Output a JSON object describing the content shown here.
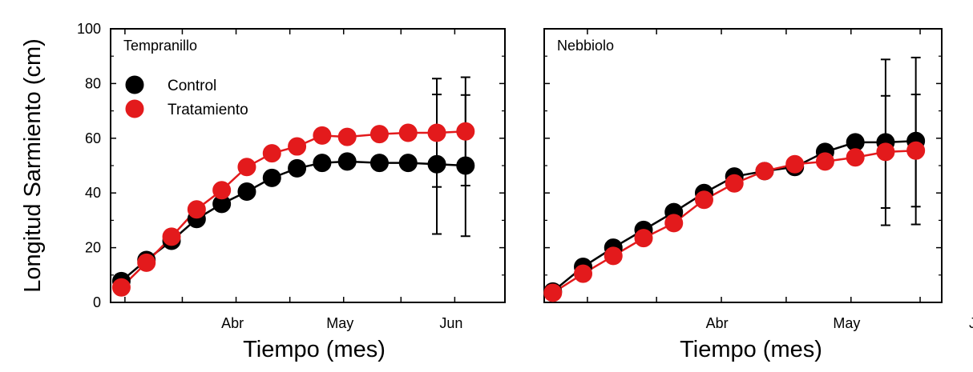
{
  "colors": {
    "control": "#000000",
    "tratamiento": "#e31a1c"
  },
  "ylabel": "Longitud Sarmiento (cm)",
  "legend": {
    "control_label": "Control",
    "tratamiento_label": "Tratamiento"
  },
  "chart_data": [
    {
      "type": "line",
      "title": "Tempranillo",
      "xlabel": "Tiempo (mes)",
      "ylabel": "Longitud Sarmiento (cm)",
      "ylim": [
        0,
        100
      ],
      "yticks": [
        0,
        20,
        40,
        60,
        80,
        100
      ],
      "xlim": [
        "2024-03-12",
        "2024-06-30"
      ],
      "xtick_labels": [
        {
          "label": "Abr",
          "date": "2024-04-01"
        },
        {
          "label": "May",
          "date": "2024-05-01"
        },
        {
          "label": "Jun",
          "date": "2024-06-01"
        }
      ],
      "x": [
        "2024-03-15",
        "2024-03-22",
        "2024-03-29",
        "2024-04-05",
        "2024-04-12",
        "2024-04-19",
        "2024-04-26",
        "2024-05-03",
        "2024-05-10",
        "2024-05-17",
        "2024-05-26",
        "2024-06-03",
        "2024-06-11",
        "2024-06-19"
      ],
      "series": [
        {
          "name": "Control",
          "color": "#000000",
          "values": [
            7.8,
            15.5,
            22.5,
            30.5,
            36,
            40.5,
            45.5,
            49,
            51,
            51.5,
            51,
            51,
            50.5,
            50
          ],
          "error": [
            null,
            null,
            null,
            null,
            null,
            null,
            null,
            null,
            null,
            null,
            null,
            null,
            25.5,
            25.8
          ]
        },
        {
          "name": "Tratamiento",
          "color": "#e31a1c",
          "values": [
            5.5,
            14.5,
            24,
            34,
            41,
            49.5,
            54.5,
            57,
            61,
            60.5,
            61.5,
            62,
            62,
            62.5
          ],
          "error": [
            null,
            null,
            null,
            null,
            null,
            null,
            null,
            null,
            null,
            null,
            null,
            null,
            19.8,
            19.8
          ]
        }
      ],
      "legend_position": "top-left",
      "grid": false
    },
    {
      "type": "line",
      "title": "Nebbiolo",
      "xlabel": "Tiempo (mes)",
      "ylabel": "",
      "ylim": [
        0,
        100
      ],
      "yticks": [
        0,
        20,
        40,
        60,
        80,
        100
      ],
      "xlim": [
        "2024-03-06",
        "2024-06-06"
      ],
      "xtick_labels": [
        {
          "label": "Abr",
          "date": "2024-04-01"
        },
        {
          "label": "May",
          "date": "2024-05-01"
        },
        {
          "label": "Jun",
          "date": "2024-06-01"
        }
      ],
      "x": [
        "2024-03-08",
        "2024-03-15",
        "2024-03-22",
        "2024-03-29",
        "2024-04-05",
        "2024-04-12",
        "2024-04-19",
        "2024-04-26",
        "2024-05-03",
        "2024-05-10",
        "2024-05-17",
        "2024-05-24",
        "2024-05-31"
      ],
      "series": [
        {
          "name": "Control",
          "color": "#000000",
          "values": [
            4,
            13,
            20,
            26.5,
            33,
            40,
            46,
            48,
            49.5,
            55,
            58.5,
            58.5,
            59
          ],
          "error": [
            null,
            null,
            null,
            null,
            null,
            null,
            null,
            null,
            null,
            null,
            null,
            30.3,
            30.5
          ]
        },
        {
          "name": "Tratamiento",
          "color": "#e31a1c",
          "values": [
            3.5,
            10.5,
            17,
            23.5,
            29,
            37.5,
            43.5,
            48,
            50.5,
            51.5,
            53,
            55,
            55.5
          ],
          "error": [
            null,
            null,
            null,
            null,
            null,
            null,
            null,
            null,
            null,
            null,
            null,
            20.5,
            20.5
          ]
        }
      ],
      "legend_position": "none",
      "grid": false
    }
  ]
}
